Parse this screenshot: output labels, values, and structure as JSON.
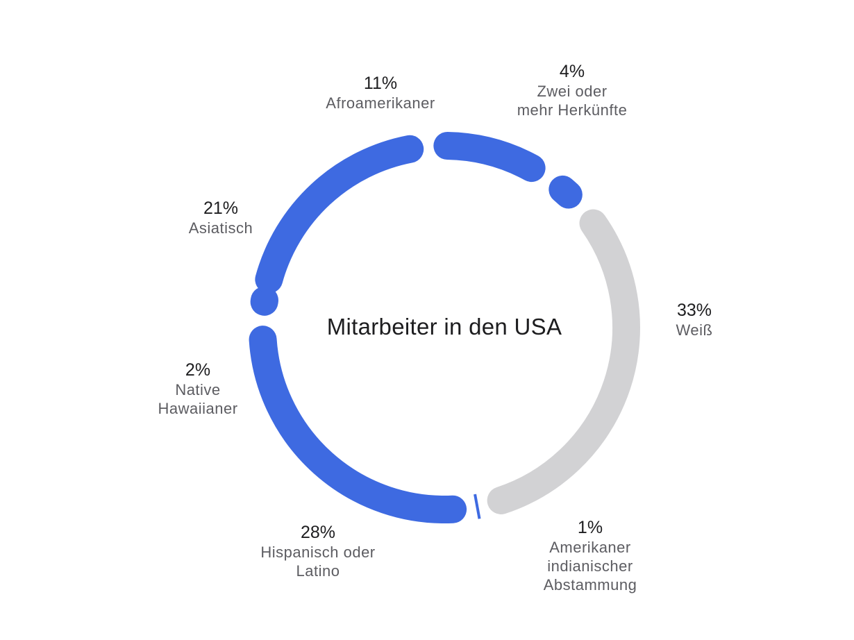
{
  "chart_data": {
    "type": "pie",
    "title": "Mitarbeiter in den USA",
    "slices": [
      {
        "name": "Weiß",
        "value": 33,
        "label": "33%",
        "color": "#d2d2d4"
      },
      {
        "name": "Amerikaner indianischer Abstammung",
        "value": 1,
        "label": "1%",
        "color": "#3e6ae1"
      },
      {
        "name": "Hispanisch oder Latino",
        "value": 28,
        "label": "28%",
        "color": "#3e6ae1"
      },
      {
        "name": "Native Hawaiianer",
        "value": 2,
        "label": "2%",
        "color": "#3e6ae1"
      },
      {
        "name": "Asiatisch",
        "value": 21,
        "label": "21%",
        "color": "#3e6ae1"
      },
      {
        "name": "Afroamerikaner",
        "value": 11,
        "label": "11%",
        "color": "#3e6ae1"
      },
      {
        "name": "Zwei oder mehr Herkünfte",
        "value": 4,
        "label": "4%",
        "color": "#3e6ae1"
      }
    ]
  },
  "labels": [
    {
      "pct": "33%",
      "lines": [
        "Weiß"
      ]
    },
    {
      "pct": "1%",
      "lines": [
        "Amerikaner",
        "indianischer",
        "Abstammung"
      ]
    },
    {
      "pct": "28%",
      "lines": [
        "Hispanisch oder",
        "Latino"
      ]
    },
    {
      "pct": "2%",
      "lines": [
        "Native",
        "Hawaiianer"
      ]
    },
    {
      "pct": "21%",
      "lines": [
        "Asiatisch"
      ]
    },
    {
      "pct": "11%",
      "lines": [
        "Afroamerikaner"
      ]
    },
    {
      "pct": "4%",
      "lines": [
        "Zwei oder",
        "mehr Herkünfte"
      ]
    }
  ]
}
